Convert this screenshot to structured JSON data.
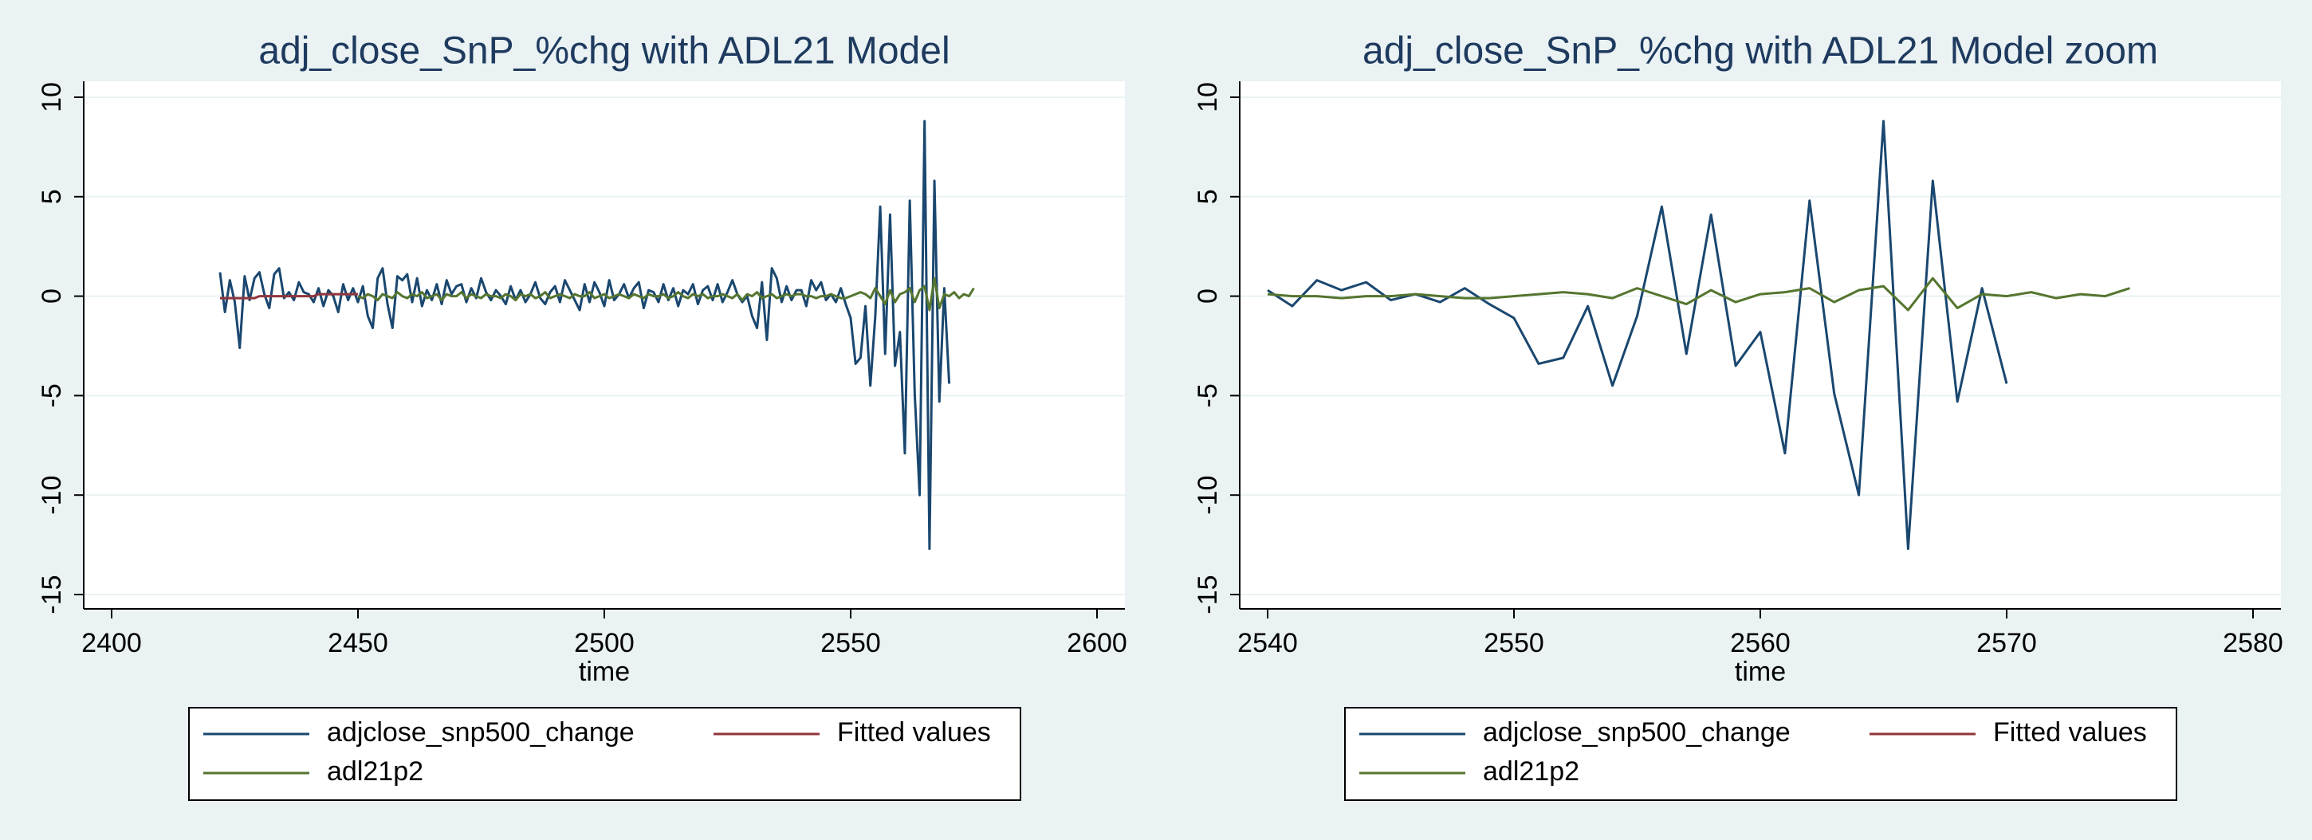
{
  "chart_data": [
    {
      "type": "line",
      "title": "adj_close_SnP_%chg with ADL21 Model",
      "xlabel": "time",
      "x": [
        2422,
        2423,
        2424,
        2425,
        2426,
        2427,
        2428,
        2429,
        2430,
        2431,
        2432,
        2433,
        2434,
        2435,
        2436,
        2437,
        2438,
        2439,
        2440,
        2441,
        2442,
        2443,
        2444,
        2445,
        2446,
        2447,
        2448,
        2449,
        2450,
        2451,
        2452,
        2453,
        2454,
        2455,
        2456,
        2457,
        2458,
        2459,
        2460,
        2461,
        2462,
        2463,
        2464,
        2465,
        2466,
        2467,
        2468,
        2469,
        2470,
        2471,
        2472,
        2473,
        2474,
        2475,
        2476,
        2477,
        2478,
        2479,
        2480,
        2481,
        2482,
        2483,
        2484,
        2485,
        2486,
        2487,
        2488,
        2489,
        2490,
        2491,
        2492,
        2493,
        2494,
        2495,
        2496,
        2497,
        2498,
        2499,
        2500,
        2501,
        2502,
        2503,
        2504,
        2505,
        2506,
        2507,
        2508,
        2509,
        2510,
        2511,
        2512,
        2513,
        2514,
        2515,
        2516,
        2517,
        2518,
        2519,
        2520,
        2521,
        2522,
        2523,
        2524,
        2525,
        2526,
        2527,
        2528,
        2529,
        2530,
        2531,
        2532,
        2533,
        2534,
        2535,
        2536,
        2537,
        2538,
        2539,
        2540,
        2541,
        2542,
        2543,
        2544,
        2545,
        2546,
        2547,
        2548,
        2549,
        2550,
        2551,
        2552,
        2553,
        2554,
        2555,
        2556,
        2557,
        2558,
        2559,
        2560,
        2561,
        2562,
        2563,
        2564,
        2565,
        2566,
        2567,
        2568,
        2569,
        2570,
        2571,
        2572,
        2573,
        2574,
        2575
      ],
      "series": [
        {
          "name": "adjclose_snp500_change",
          "color": "#1a476f",
          "values": [
            1.2,
            -0.8,
            0.8,
            -0.3,
            -2.6,
            1.0,
            -0.2,
            0.9,
            1.2,
            0.1,
            -0.6,
            1.1,
            1.4,
            -0.1,
            0.2,
            -0.2,
            0.7,
            0.2,
            0.1,
            -0.3,
            0.4,
            -0.5,
            0.3,
            0.0,
            -0.8,
            0.6,
            -0.2,
            0.4,
            -0.3,
            0.5,
            -1.0,
            -1.6,
            0.9,
            1.4,
            -0.4,
            -1.6,
            1.0,
            0.8,
            1.1,
            -0.3,
            0.9,
            -0.5,
            0.3,
            -0.2,
            0.6,
            -0.4,
            0.8,
            0.1,
            0.5,
            0.6,
            -0.3,
            0.4,
            -0.1,
            0.9,
            0.2,
            -0.2,
            0.3,
            0.0,
            -0.4,
            0.5,
            -0.2,
            0.3,
            -0.3,
            0.1,
            0.7,
            -0.1,
            -0.4,
            0.2,
            0.5,
            -0.3,
            0.8,
            0.3,
            -0.2,
            -0.7,
            0.6,
            -0.3,
            0.7,
            0.2,
            -0.5,
            0.8,
            -0.2,
            0.1,
            0.6,
            -0.1,
            0.4,
            0.7,
            -0.6,
            0.3,
            0.2,
            -0.3,
            0.6,
            -0.2,
            0.4,
            -0.5,
            0.3,
            0.1,
            0.6,
            -0.4,
            0.3,
            0.5,
            -0.2,
            0.6,
            -0.3,
            0.2,
            0.8,
            0.1,
            -0.3,
            0.0,
            -1.0,
            -1.6,
            0.7,
            -2.2,
            1.4,
            0.9,
            -0.3,
            0.5,
            -0.2,
            0.3,
            0.3,
            -0.5,
            0.8,
            0.3,
            0.7,
            -0.2,
            0.1,
            -0.3,
            0.4,
            -0.4,
            -1.1,
            -3.4,
            -3.1,
            -0.5,
            -4.5,
            -1.0,
            4.5,
            -2.9,
            4.1,
            -3.5,
            -1.8,
            -7.9,
            4.8,
            -4.9,
            -10.0,
            8.8,
            -12.7,
            5.8,
            -5.3,
            0.4,
            -4.4,
            null,
            null,
            null,
            null,
            null
          ]
        },
        {
          "name": "Fitted values",
          "color": "#90353b",
          "values": [
            -0.1,
            -0.1,
            -0.1,
            -0.1,
            -0.1,
            -0.1,
            -0.1,
            -0.1,
            0.0,
            0.0,
            0.0,
            0.0,
            0.0,
            0.0,
            0.0,
            0.0,
            0.0,
            0.0,
            0.0,
            0.0,
            0.1,
            0.1,
            0.1,
            0.1,
            0.1,
            0.1,
            0.1,
            0.1,
            0.1,
            null,
            null,
            null,
            null,
            null,
            null,
            null,
            null,
            null,
            null,
            null,
            null,
            null,
            null,
            null,
            null,
            null,
            null,
            null,
            null,
            null,
            null,
            null,
            null,
            null,
            null,
            null,
            null,
            null,
            null,
            null,
            null,
            null,
            null,
            null,
            null,
            null,
            null,
            null,
            null,
            null,
            null,
            null,
            null,
            null,
            null,
            null,
            null,
            null,
            null,
            null,
            null,
            null,
            null,
            null,
            null,
            null,
            null,
            null,
            null,
            null,
            null,
            null,
            null,
            null,
            null,
            null,
            null,
            null,
            null,
            null,
            null,
            null,
            null,
            null,
            null,
            null,
            null,
            null,
            null,
            null,
            null,
            null,
            null,
            null,
            null,
            null,
            null,
            null,
            null,
            null,
            null,
            null,
            null,
            null,
            null,
            null,
            null,
            null,
            null,
            null,
            null,
            null,
            null,
            null,
            null,
            null,
            null,
            null,
            null,
            null,
            null,
            null,
            null,
            null,
            null,
            null,
            null,
            null,
            null,
            null,
            null,
            null,
            null,
            null
          ]
        },
        {
          "name": "adl21p2",
          "color": "#55752f",
          "values": [
            null,
            null,
            null,
            null,
            null,
            null,
            null,
            null,
            null,
            null,
            null,
            null,
            null,
            null,
            null,
            null,
            null,
            null,
            null,
            null,
            null,
            null,
            null,
            null,
            null,
            null,
            null,
            null,
            0.0,
            -0.1,
            0.1,
            0.0,
            -0.2,
            0.1,
            0.0,
            -0.1,
            0.2,
            0.0,
            -0.1,
            0.1,
            0.0,
            0.2,
            -0.1,
            0.0,
            0.1,
            -0.2,
            0.1,
            0.0,
            0.0,
            0.2,
            -0.1,
            0.1,
            0.0,
            -0.1,
            0.1,
            0.0,
            0.0,
            -0.1,
            0.1,
            0.0,
            -0.2,
            0.1,
            0.0,
            0.1,
            -0.1,
            0.0,
            0.2,
            -0.1,
            0.0,
            0.1,
            0.0,
            -0.1,
            0.1,
            0.0,
            0.0,
            0.2,
            -0.1,
            0.0,
            0.1,
            -0.1,
            0.0,
            0.1,
            0.0,
            -0.1,
            0.1,
            0.0,
            -0.1,
            0.1,
            0.0,
            0.0,
            0.1,
            -0.1,
            0.0,
            0.2,
            0.0,
            -0.1,
            0.1,
            0.0,
            0.1,
            -0.1,
            0.0,
            0.0,
            0.1,
            0.0,
            -0.1,
            0.1,
            -0.2,
            0.1,
            0.0,
            0.2,
            -0.1,
            0.0,
            0.1,
            -0.1,
            0.0,
            0.1,
            0.0,
            0.1,
            0.1,
            0.0,
            0.0,
            -0.1,
            0.0,
            0.0,
            0.1,
            0.0,
            -0.1,
            -0.1,
            0.0,
            0.1,
            0.2,
            0.1,
            -0.1,
            0.4,
            0.0,
            -0.4,
            0.3,
            -0.3,
            0.1,
            0.2,
            0.4,
            -0.3,
            0.3,
            0.5,
            -0.7,
            0.9,
            -0.6,
            0.1,
            0.0,
            0.2,
            -0.1,
            0.1,
            0.0,
            0.4
          ]
        }
      ],
      "xlim": [
        2400,
        2600
      ],
      "ylim": [
        -15,
        10
      ],
      "xticks": [
        2400,
        2450,
        2500,
        2550,
        2600
      ],
      "yticks": [
        -15,
        -10,
        -5,
        0,
        5,
        10
      ],
      "grid": true
    },
    {
      "type": "line",
      "title": "adj_close_SnP_%chg with ADL21 Model zoom",
      "xlabel": "time",
      "x": [
        2540,
        2541,
        2542,
        2543,
        2544,
        2545,
        2546,
        2547,
        2548,
        2549,
        2550,
        2551,
        2552,
        2553,
        2554,
        2555,
        2556,
        2557,
        2558,
        2559,
        2560,
        2561,
        2562,
        2563,
        2564,
        2565,
        2566,
        2567,
        2568,
        2569,
        2570,
        2571,
        2572,
        2573,
        2574,
        2575
      ],
      "series": [
        {
          "name": "adjclose_snp500_change",
          "color": "#1a476f",
          "values": [
            0.3,
            -0.5,
            0.8,
            0.3,
            0.7,
            -0.2,
            0.1,
            -0.3,
            0.4,
            -0.4,
            -1.1,
            -3.4,
            -3.1,
            -0.5,
            -4.5,
            -1.0,
            4.5,
            -2.9,
            4.1,
            -3.5,
            -1.8,
            -7.9,
            4.8,
            -4.9,
            -10.0,
            8.8,
            -12.7,
            5.8,
            -5.3,
            0.4,
            -4.4,
            null,
            null,
            null,
            null,
            null
          ]
        },
        {
          "name": "Fitted values",
          "color": "#90353b",
          "values": [
            null,
            null,
            null,
            null,
            null,
            null,
            null,
            null,
            null,
            null,
            null,
            null,
            null,
            null,
            null,
            null,
            null,
            null,
            null,
            null,
            null,
            null,
            null,
            null,
            null,
            null,
            null,
            null,
            null,
            null,
            null,
            null,
            null,
            null,
            null,
            null
          ]
        },
        {
          "name": "adl21p2",
          "color": "#55752f",
          "values": [
            0.1,
            0.0,
            0.0,
            -0.1,
            0.0,
            0.0,
            0.1,
            0.0,
            -0.1,
            -0.1,
            0.0,
            0.1,
            0.2,
            0.1,
            -0.1,
            0.4,
            0.0,
            -0.4,
            0.3,
            -0.3,
            0.1,
            0.2,
            0.4,
            -0.3,
            0.3,
            0.5,
            -0.7,
            0.9,
            -0.6,
            0.1,
            0.0,
            0.2,
            -0.1,
            0.1,
            0.0,
            0.4
          ]
        }
      ],
      "xlim": [
        2540,
        2580
      ],
      "ylim": [
        -15,
        10
      ],
      "xticks": [
        2540,
        2550,
        2560,
        2570,
        2580
      ],
      "yticks": [
        -15,
        -10,
        -5,
        0,
        5,
        10
      ],
      "grid": true
    }
  ]
}
